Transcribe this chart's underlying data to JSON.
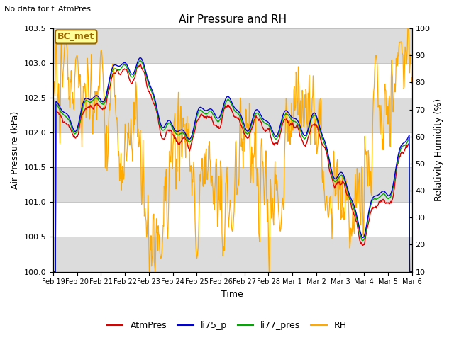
{
  "title": "Air Pressure and RH",
  "no_data_text": "No data for f_AtmPres",
  "station_label": "BC_met",
  "ylabel_left": "Air Pressure (kPa)",
  "ylabel_right": "Relativity Humidity (%)",
  "xlabel": "Time",
  "ylim_left": [
    100.0,
    103.5
  ],
  "ylim_right": [
    10,
    100
  ],
  "yticks_left": [
    100.0,
    100.5,
    101.0,
    101.5,
    102.0,
    102.5,
    103.0,
    103.5
  ],
  "yticks_right": [
    10,
    20,
    30,
    40,
    50,
    60,
    70,
    80,
    90,
    100
  ],
  "xtick_labels": [
    "Feb 19",
    "Feb 20",
    "Feb 21",
    "Feb 22",
    "Feb 23",
    "Feb 24",
    "Feb 25",
    "Feb 26",
    "Feb 27",
    "Feb 28",
    "Mar 1",
    "Mar 2",
    "Mar 3",
    "Mar 4",
    "Mar 5",
    "Mar 6"
  ],
  "colors": {
    "AtmPres": "#dd0000",
    "li75_p": "#0000dd",
    "li77_pres": "#00aa00",
    "RH": "#ffaa00",
    "plot_bg_white": "#ffffff",
    "plot_bg_gray": "#dcdcdc",
    "station_box_edge": "#996600",
    "station_box_fill": "#ffff99"
  },
  "legend_labels": [
    "AtmPres",
    "li75_p",
    "li77_pres",
    "RH"
  ],
  "figsize": [
    6.4,
    4.8
  ],
  "dpi": 100
}
